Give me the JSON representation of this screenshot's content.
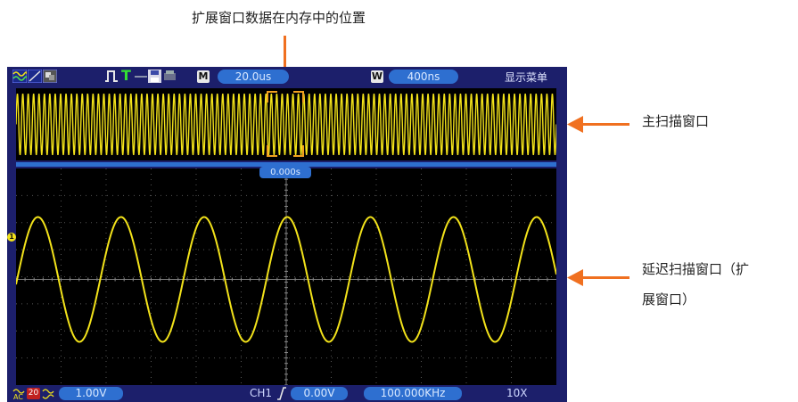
{
  "annotations": {
    "top": "扩展窗口数据在内存中的位置",
    "main_window": "主扫描窗口",
    "delayed_window_line1": "延迟扫描窗口（扩",
    "delayed_window_line2": "展窗口）"
  },
  "topbar": {
    "icons": [
      "waveform-icon",
      "cursor-icon",
      "persist-icon",
      "trigger-pulse-icon",
      "trigger-t-icon",
      "usb-icon",
      "save-icon",
      "print-icon"
    ],
    "m_label": "M",
    "main_timebase": "20.0us",
    "w_label": "W",
    "window_timebase": "400ns",
    "menu": "显示菜单"
  },
  "delay_marker": "0.000s",
  "bottombar": {
    "ch_coupling_icon": "ac-coupling-icon",
    "bw_limit": "20",
    "ch_scale": "1.00V",
    "trigger_source": "CH1",
    "trigger_level": "0.00V",
    "frequency": "100.000KHz",
    "probe": "10X"
  },
  "channel_marker": "1",
  "colors": {
    "trace": "#f2e21a",
    "accent": "#2e6fd0",
    "frame": "#1c1f6b",
    "callout_arrow": "#f07020",
    "zoom_bracket": "#f0a020"
  },
  "waveform": {
    "main_cycles": 100,
    "detail_cycles": 6.5
  }
}
